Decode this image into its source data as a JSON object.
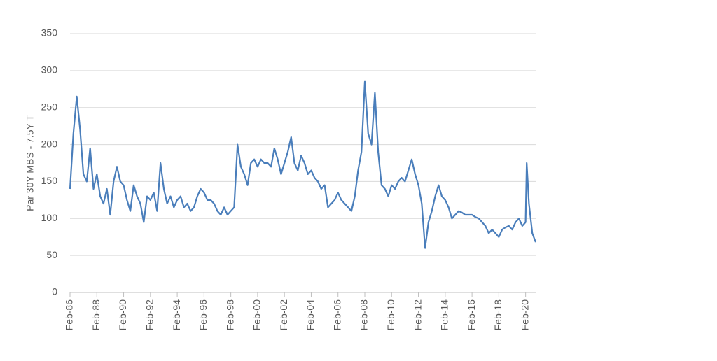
{
  "chart_data": {
    "type": "line",
    "ylabel": "Par 30Y MBS - 7.5Y T",
    "color": "#4a7ebb",
    "grid": true,
    "ylim": [
      0,
      350
    ],
    "yticks": [
      0,
      50,
      100,
      150,
      200,
      250,
      300,
      350
    ],
    "xlim": [
      "1986-02",
      "2020-11"
    ],
    "xticks": [
      {
        "value": "1986-02",
        "label": "Feb-86"
      },
      {
        "value": "1988-02",
        "label": "Feb-88"
      },
      {
        "value": "1990-02",
        "label": "Feb-90"
      },
      {
        "value": "1992-02",
        "label": "Feb-92"
      },
      {
        "value": "1994-02",
        "label": "Feb-94"
      },
      {
        "value": "1996-02",
        "label": "Feb-96"
      },
      {
        "value": "1998-02",
        "label": "Feb-98"
      },
      {
        "value": "2000-02",
        "label": "Feb-00"
      },
      {
        "value": "2002-02",
        "label": "Feb-02"
      },
      {
        "value": "2004-02",
        "label": "Feb-04"
      },
      {
        "value": "2006-02",
        "label": "Feb-06"
      },
      {
        "value": "2008-02",
        "label": "Feb-08"
      },
      {
        "value": "2010-02",
        "label": "Feb-10"
      },
      {
        "value": "2012-02",
        "label": "Feb-12"
      },
      {
        "value": "2014-02",
        "label": "Feb-14"
      },
      {
        "value": "2016-02",
        "label": "Feb-16"
      },
      {
        "value": "2018-02",
        "label": "Feb-18"
      },
      {
        "value": "2020-02",
        "label": "Feb-20"
      }
    ],
    "x": [
      "1986-02",
      "1986-05",
      "1986-08",
      "1986-11",
      "1987-02",
      "1987-05",
      "1987-08",
      "1987-11",
      "1988-02",
      "1988-05",
      "1988-08",
      "1988-11",
      "1989-02",
      "1989-05",
      "1989-08",
      "1989-11",
      "1990-02",
      "1990-05",
      "1990-08",
      "1990-11",
      "1991-02",
      "1991-05",
      "1991-08",
      "1991-11",
      "1992-02",
      "1992-05",
      "1992-08",
      "1992-11",
      "1993-02",
      "1993-05",
      "1993-08",
      "1993-11",
      "1994-02",
      "1994-05",
      "1994-08",
      "1994-11",
      "1995-02",
      "1995-05",
      "1995-08",
      "1995-11",
      "1996-02",
      "1996-05",
      "1996-08",
      "1996-11",
      "1997-02",
      "1997-05",
      "1997-08",
      "1997-11",
      "1998-02",
      "1998-05",
      "1998-08",
      "1998-11",
      "1999-02",
      "1999-05",
      "1999-08",
      "1999-11",
      "2000-02",
      "2000-05",
      "2000-08",
      "2000-11",
      "2001-02",
      "2001-05",
      "2001-08",
      "2001-11",
      "2002-02",
      "2002-05",
      "2002-08",
      "2002-11",
      "2003-02",
      "2003-05",
      "2003-08",
      "2003-11",
      "2004-02",
      "2004-05",
      "2004-08",
      "2004-11",
      "2005-02",
      "2005-05",
      "2005-08",
      "2005-11",
      "2006-02",
      "2006-05",
      "2006-08",
      "2006-11",
      "2007-02",
      "2007-05",
      "2007-08",
      "2007-11",
      "2008-02",
      "2008-05",
      "2008-08",
      "2008-11",
      "2009-02",
      "2009-05",
      "2009-08",
      "2009-11",
      "2010-02",
      "2010-05",
      "2010-08",
      "2010-11",
      "2011-02",
      "2011-05",
      "2011-08",
      "2011-11",
      "2012-02",
      "2012-05",
      "2012-08",
      "2012-11",
      "2013-02",
      "2013-05",
      "2013-08",
      "2013-11",
      "2014-02",
      "2014-05",
      "2014-08",
      "2014-11",
      "2015-02",
      "2015-05",
      "2015-08",
      "2015-11",
      "2016-02",
      "2016-05",
      "2016-08",
      "2016-11",
      "2017-02",
      "2017-05",
      "2017-08",
      "2017-11",
      "2018-02",
      "2018-05",
      "2018-08",
      "2018-11",
      "2019-02",
      "2019-05",
      "2019-08",
      "2019-11",
      "2020-02",
      "2020-03",
      "2020-05",
      "2020-08",
      "2020-11"
    ],
    "values": [
      140,
      215,
      265,
      220,
      160,
      150,
      195,
      140,
      160,
      130,
      120,
      140,
      105,
      150,
      170,
      150,
      145,
      125,
      110,
      145,
      130,
      120,
      95,
      130,
      125,
      135,
      110,
      175,
      140,
      120,
      130,
      115,
      125,
      130,
      115,
      120,
      110,
      115,
      130,
      140,
      135,
      125,
      125,
      120,
      110,
      105,
      115,
      105,
      110,
      115,
      200,
      170,
      160,
      145,
      175,
      180,
      170,
      180,
      175,
      175,
      170,
      195,
      180,
      160,
      175,
      190,
      210,
      175,
      165,
      185,
      175,
      160,
      165,
      155,
      150,
      140,
      145,
      115,
      120,
      125,
      135,
      125,
      120,
      115,
      110,
      130,
      165,
      190,
      285,
      215,
      200,
      270,
      190,
      145,
      140,
      130,
      145,
      140,
      150,
      155,
      150,
      165,
      180,
      160,
      145,
      120,
      60,
      95,
      110,
      130,
      145,
      130,
      125,
      115,
      100,
      105,
      110,
      108,
      105,
      105,
      105,
      102,
      100,
      95,
      90,
      80,
      85,
      80,
      75,
      85,
      88,
      90,
      85,
      95,
      100,
      90,
      95,
      175,
      120,
      80,
      68
    ]
  }
}
